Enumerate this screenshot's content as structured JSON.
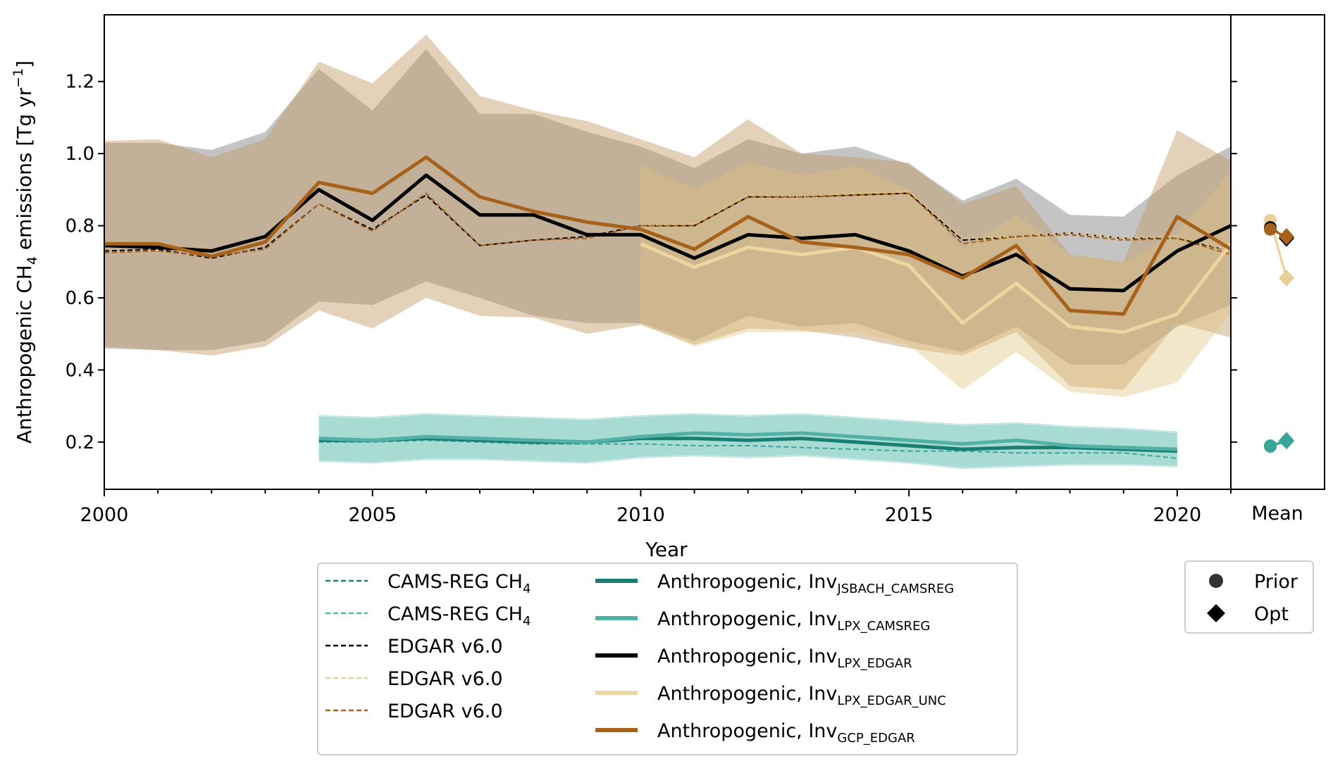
{
  "chart_data": {
    "type": "line",
    "xlabel": "Year",
    "ylabel": "Anthropogenic CH4 emissions [Tg yr-1]",
    "xlim": [
      2000,
      2021
    ],
    "ylim": [
      0.069,
      1.385
    ],
    "xticks": [
      2000,
      2005,
      2010,
      2015,
      2020
    ],
    "yticks": [
      0.2,
      0.4,
      0.6,
      0.8,
      1.0,
      1.2
    ],
    "ytick_labels": [
      "0.2",
      "0.4",
      "0.6",
      "0.8",
      "1.0",
      "1.2"
    ],
    "mean_label": "Mean",
    "bands": [
      {
        "name": "LPX_EDGAR range",
        "color": "#555555",
        "opacity": 0.35,
        "x0": 2000,
        "upper": [
          1.03,
          1.03,
          1.01,
          1.06,
          1.235,
          1.12,
          1.29,
          1.11,
          1.11,
          1.06,
          1.02,
          0.96,
          1.04,
          1.0,
          1.02,
          0.97,
          0.87,
          0.93,
          0.83,
          0.825,
          0.94,
          1.02
        ],
        "lower": [
          0.46,
          0.455,
          0.455,
          0.48,
          0.59,
          0.58,
          0.645,
          0.6,
          0.55,
          0.53,
          0.53,
          0.48,
          0.55,
          0.52,
          0.53,
          0.48,
          0.45,
          0.52,
          0.415,
          0.415,
          0.52,
          0.58
        ]
      },
      {
        "name": "GCP_EDGAR range",
        "color": "#c49a66",
        "opacity": 0.45,
        "x0": 2000,
        "upper": [
          1.035,
          1.04,
          0.99,
          1.04,
          1.255,
          1.195,
          1.33,
          1.16,
          1.12,
          1.09,
          1.04,
          0.99,
          1.095,
          1.0,
          0.99,
          0.975,
          0.86,
          0.91,
          0.72,
          0.7,
          1.065,
          0.98
        ],
        "lower": [
          0.465,
          0.455,
          0.44,
          0.465,
          0.565,
          0.515,
          0.6,
          0.55,
          0.545,
          0.5,
          0.525,
          0.47,
          0.515,
          0.51,
          0.49,
          0.46,
          0.44,
          0.505,
          0.355,
          0.345,
          0.53,
          0.49
        ]
      },
      {
        "name": "LPX_EDGAR_UNC range",
        "color": "#dfc27d",
        "opacity": 0.4,
        "x0": 2010,
        "upper": [
          0.97,
          0.9,
          0.975,
          0.94,
          0.965,
          0.9,
          0.74,
          0.83,
          0.72,
          0.7,
          0.78,
          0.95
        ],
        "lower": [
          0.53,
          0.465,
          0.505,
          0.505,
          0.505,
          0.47,
          0.345,
          0.45,
          0.34,
          0.325,
          0.365,
          0.56
        ]
      },
      {
        "name": "JSBACH_CAMSREG range",
        "color": "#80cdc1",
        "opacity": 0.45,
        "x0": 2004,
        "upper": [
          0.275,
          0.27,
          0.28,
          0.275,
          0.27,
          0.265,
          0.275,
          0.28,
          0.275,
          0.28,
          0.27,
          0.26,
          0.25,
          0.255,
          0.245,
          0.24,
          0.23
        ],
        "lower": [
          0.145,
          0.14,
          0.15,
          0.15,
          0.145,
          0.14,
          0.155,
          0.16,
          0.155,
          0.16,
          0.15,
          0.14,
          0.125,
          0.13,
          0.135,
          0.135,
          0.13
        ]
      },
      {
        "name": "LPX_CAMSREG range",
        "color": "#80cdc1",
        "opacity": 0.45,
        "x0": 2004,
        "upper": [
          0.27,
          0.265,
          0.275,
          0.27,
          0.265,
          0.26,
          0.27,
          0.275,
          0.27,
          0.275,
          0.265,
          0.255,
          0.245,
          0.25,
          0.24,
          0.235,
          0.225
        ],
        "lower": [
          0.15,
          0.145,
          0.155,
          0.155,
          0.15,
          0.145,
          0.16,
          0.165,
          0.16,
          0.165,
          0.155,
          0.145,
          0.13,
          0.135,
          0.14,
          0.14,
          0.135
        ]
      }
    ],
    "series": [
      {
        "name": "EDGAR v6.0 (LPX_EDGAR prior)",
        "color": "#000000",
        "dash": true,
        "width": 2,
        "x0": 2000,
        "values": [
          0.73,
          0.735,
          0.71,
          0.74,
          0.86,
          0.79,
          0.885,
          0.745,
          0.76,
          0.77,
          0.8,
          0.8,
          0.88,
          0.88,
          0.885,
          0.89,
          0.76,
          0.77,
          0.78,
          0.765,
          0.765,
          0.73
        ]
      },
      {
        "name": "EDGAR v6.0 (UNC prior)",
        "color": "#dfc27d",
        "dash": true,
        "width": 2,
        "x0": 2010,
        "values": [
          0.8,
          0.805,
          0.885,
          0.88,
          0.89,
          0.895,
          0.765,
          0.77,
          0.78,
          0.765,
          0.77,
          0.73
        ]
      },
      {
        "name": "EDGAR v6.0 (GCP prior)",
        "color": "#a6611a",
        "dash": true,
        "width": 2,
        "x0": 2000,
        "values": [
          0.725,
          0.73,
          0.715,
          0.735,
          0.86,
          0.785,
          0.89,
          0.745,
          0.76,
          0.765,
          0.8,
          0.8,
          0.88,
          0.88,
          0.885,
          0.89,
          0.75,
          0.77,
          0.775,
          0.76,
          0.765,
          0.72
        ]
      },
      {
        "name": "CAMS-REG CH4",
        "color": "#3aa698",
        "dash": true,
        "width": 2,
        "x0": 2004,
        "values": [
          0.2,
          0.2,
          0.205,
          0.2,
          0.195,
          0.195,
          0.195,
          0.19,
          0.19,
          0.185,
          0.18,
          0.175,
          0.175,
          0.17,
          0.17,
          0.17,
          0.155
        ]
      },
      {
        "name": "Anthropogenic, Inv JSBACH_CAMSREG",
        "color": "#1a7f73",
        "dash": false,
        "width": 5,
        "x0": 2004,
        "values": [
          0.205,
          0.205,
          0.21,
          0.205,
          0.2,
          0.2,
          0.21,
          0.21,
          0.205,
          0.21,
          0.2,
          0.19,
          0.18,
          0.185,
          0.185,
          0.18,
          0.175
        ]
      },
      {
        "name": "Anthropogenic, Inv LPX_CAMSREG",
        "color": "#52b0a4",
        "dash": false,
        "width": 5,
        "x0": 2004,
        "values": [
          0.21,
          0.205,
          0.215,
          0.21,
          0.205,
          0.2,
          0.215,
          0.225,
          0.22,
          0.225,
          0.215,
          0.205,
          0.195,
          0.205,
          0.19,
          0.185,
          0.18
        ]
      },
      {
        "name": "Anthropogenic, Inv LPX_EDGAR",
        "color": "#000000",
        "dash": false,
        "width": 5,
        "x0": 2000,
        "values": [
          0.745,
          0.74,
          0.73,
          0.77,
          0.9,
          0.815,
          0.94,
          0.83,
          0.83,
          0.775,
          0.775,
          0.71,
          0.775,
          0.765,
          0.775,
          0.73,
          0.66,
          0.72,
          0.625,
          0.62,
          0.73,
          0.8
        ]
      },
      {
        "name": "Anthropogenic, Inv LPX_EDGAR_UNC",
        "color": "#ecd59f",
        "dash": false,
        "width": 5,
        "x0": 2010,
        "values": [
          0.75,
          0.685,
          0.74,
          0.72,
          0.74,
          0.69,
          0.53,
          0.64,
          0.52,
          0.505,
          0.555,
          0.75
        ]
      },
      {
        "name": "Anthropogenic, Inv GCP_EDGAR",
        "color": "#a6611a",
        "dash": false,
        "width": 5,
        "x0": 2000,
        "values": [
          0.75,
          0.75,
          0.715,
          0.755,
          0.92,
          0.89,
          0.99,
          0.88,
          0.84,
          0.81,
          0.79,
          0.735,
          0.825,
          0.755,
          0.74,
          0.72,
          0.655,
          0.745,
          0.565,
          0.555,
          0.825,
          0.735
        ]
      }
    ],
    "means": [
      {
        "name": "LPX_EDGAR_UNC",
        "color": "#e8cf94",
        "prior": 0.815,
        "opt": 0.655
      },
      {
        "name": "LPX_EDGAR",
        "color": "#000000",
        "prior": 0.795,
        "opt": 0.765
      },
      {
        "name": "GCP_EDGAR",
        "color": "#a6611a",
        "prior": 0.79,
        "opt": 0.77
      },
      {
        "name": "LPX_CAMSREG",
        "color": "#52b0a4",
        "prior": 0.19,
        "opt": 0.205
      },
      {
        "name": "JSBACH_CAMSREG",
        "color": "#3aa698",
        "prior": 0.188,
        "opt": 0.203
      }
    ],
    "legend": {
      "left": [
        {
          "label": "CAMS-REG CH",
          "sub": "4",
          "color": "#1a7f73"
        },
        {
          "label": "CAMS-REG CH",
          "sub": "4",
          "color": "#52b0a4"
        },
        {
          "label": "EDGAR v6.0",
          "sub": "",
          "color": "#000000"
        },
        {
          "label": "EDGAR v6.0",
          "sub": "",
          "color": "#e8d19a"
        },
        {
          "label": "EDGAR v6.0",
          "sub": "",
          "color": "#a6611a"
        }
      ],
      "right": [
        {
          "label": "Anthropogenic, Inv",
          "sub": "JSBACH_CAMSREG",
          "color": "#1a7f73"
        },
        {
          "label": "Anthropogenic, Inv",
          "sub": "LPX_CAMSREG",
          "color": "#52b0a4"
        },
        {
          "label": "Anthropogenic, Inv",
          "sub": "LPX_EDGAR",
          "color": "#000000"
        },
        {
          "label": "Anthropogenic, Inv",
          "sub": "LPX_EDGAR_UNC",
          "color": "#ecd59f"
        },
        {
          "label": "Anthropogenic, Inv",
          "sub": "GCP_EDGAR",
          "color": "#a6611a"
        }
      ],
      "markers": [
        {
          "label": "Prior",
          "shape": "circle"
        },
        {
          "label": "Opt",
          "shape": "diamond"
        }
      ]
    }
  }
}
